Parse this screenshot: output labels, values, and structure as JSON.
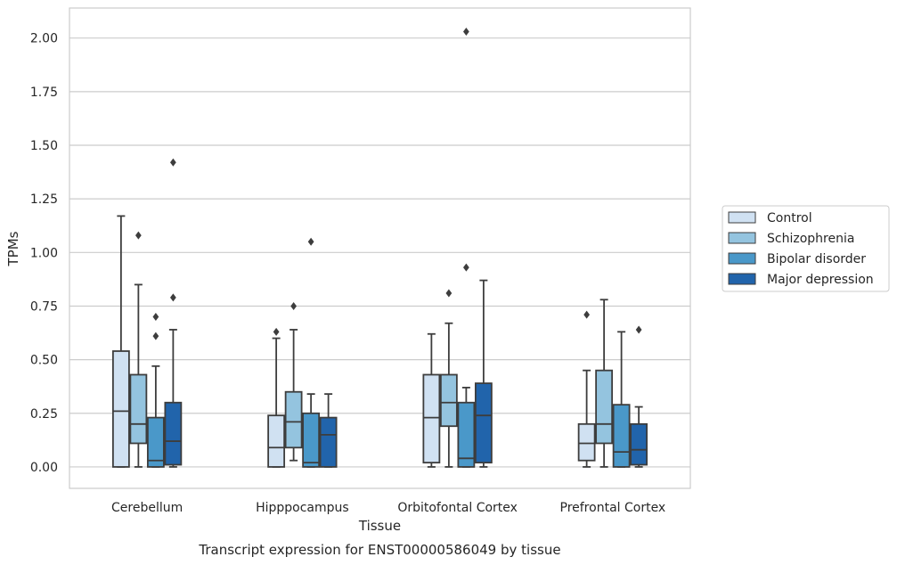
{
  "chart_data": {
    "type": "box",
    "categories": [
      "Cerebellum",
      "Hipppocampus",
      "Orbitofontal Cortex",
      "Prefrontal Cortex"
    ],
    "xlabel": "Tissue",
    "ylabel": "TPMs",
    "ylim": [
      -0.1,
      2.14
    ],
    "yticks": [
      "0.00",
      "0.25",
      "0.50",
      "0.75",
      "1.00",
      "1.25",
      "1.50",
      "1.75",
      "2.00"
    ],
    "grid": "horizontal",
    "legend_position": "right",
    "caption": "Transcript expression for ENST00000586049 by tissue",
    "series": [
      {
        "name": "Control",
        "color": "#d0e1f2",
        "boxes": [
          {
            "whislo": 0.0,
            "q1": 0.0,
            "med": 0.26,
            "q3": 0.54,
            "whishi": 1.17,
            "fliers": []
          },
          {
            "whislo": 0.0,
            "q1": 0.0,
            "med": 0.09,
            "q3": 0.24,
            "whishi": 0.6,
            "fliers": [
              0.63
            ]
          },
          {
            "whislo": 0.0,
            "q1": 0.02,
            "med": 0.23,
            "q3": 0.43,
            "whishi": 0.62,
            "fliers": []
          },
          {
            "whislo": 0.0,
            "q1": 0.03,
            "med": 0.11,
            "q3": 0.2,
            "whishi": 0.45,
            "fliers": [
              0.71
            ]
          }
        ]
      },
      {
        "name": "Schizophrenia",
        "color": "#94c4df",
        "boxes": [
          {
            "whislo": 0.0,
            "q1": 0.11,
            "med": 0.2,
            "q3": 0.43,
            "whishi": 0.85,
            "fliers": [
              1.08
            ]
          },
          {
            "whislo": 0.03,
            "q1": 0.09,
            "med": 0.21,
            "q3": 0.35,
            "whishi": 0.64,
            "fliers": [
              0.75
            ]
          },
          {
            "whislo": 0.0,
            "q1": 0.19,
            "med": 0.3,
            "q3": 0.43,
            "whishi": 0.67,
            "fliers": [
              0.81
            ]
          },
          {
            "whislo": 0.0,
            "q1": 0.11,
            "med": 0.2,
            "q3": 0.45,
            "whishi": 0.78,
            "fliers": []
          }
        ]
      },
      {
        "name": "Bipolar disorder",
        "color": "#4a98c9",
        "boxes": [
          {
            "whislo": 0.0,
            "q1": 0.0,
            "med": 0.03,
            "q3": 0.23,
            "whishi": 0.47,
            "fliers": [
              0.61,
              0.7
            ]
          },
          {
            "whislo": 0.0,
            "q1": 0.0,
            "med": 0.02,
            "q3": 0.25,
            "whishi": 0.34,
            "fliers": [
              1.05
            ]
          },
          {
            "whislo": 0.0,
            "q1": 0.0,
            "med": 0.04,
            "q3": 0.3,
            "whishi": 0.37,
            "fliers": [
              0.93,
              2.03
            ]
          },
          {
            "whislo": 0.0,
            "q1": 0.0,
            "med": 0.07,
            "q3": 0.29,
            "whishi": 0.63,
            "fliers": []
          }
        ]
      },
      {
        "name": "Major depression",
        "color": "#2164ab",
        "boxes": [
          {
            "whislo": 0.0,
            "q1": 0.01,
            "med": 0.12,
            "q3": 0.3,
            "whishi": 0.64,
            "fliers": [
              0.79,
              1.42
            ]
          },
          {
            "whislo": 0.0,
            "q1": 0.0,
            "med": 0.15,
            "q3": 0.23,
            "whishi": 0.34,
            "fliers": []
          },
          {
            "whislo": 0.0,
            "q1": 0.02,
            "med": 0.24,
            "q3": 0.39,
            "whishi": 0.87,
            "fliers": []
          },
          {
            "whislo": 0.0,
            "q1": 0.01,
            "med": 0.08,
            "q3": 0.2,
            "whishi": 0.28,
            "fliers": [
              0.64
            ]
          }
        ]
      }
    ]
  }
}
